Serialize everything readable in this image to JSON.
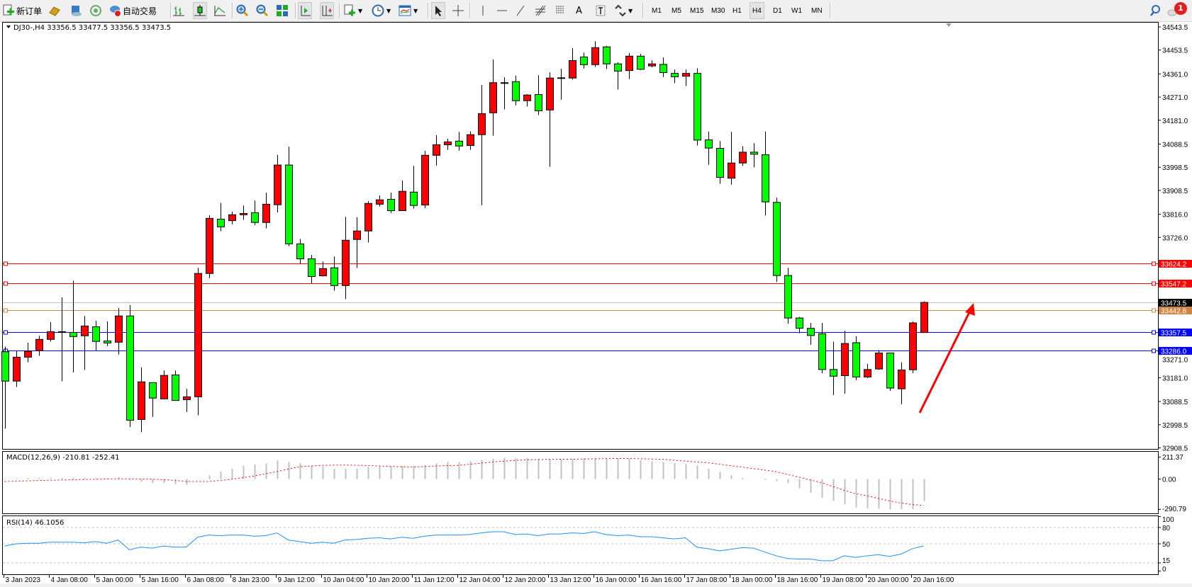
{
  "toolbar": {
    "new_order": "新订单",
    "auto_trading": "自动交易",
    "timeframes": [
      "M1",
      "M5",
      "M15",
      "M30",
      "H1",
      "H4",
      "D1",
      "W1",
      "MN"
    ],
    "active_timeframe": "H4",
    "notification_count": "1",
    "icons": [
      "new-order-icon",
      "gold-icon",
      "history-icon",
      "signal-icon",
      "auto-trading-icon",
      "bar-chart-icon",
      "candlestick-icon",
      "line-chart-icon",
      "zoom-in-icon",
      "zoom-out-icon",
      "tile-windows-icon",
      "auto-scroll-icon",
      "chart-shift-icon",
      "new-chart-icon",
      "periods-clock-icon",
      "templates-icon",
      "cursor-icon",
      "crosshair-icon",
      "vertical-line-icon",
      "horizontal-line-icon",
      "trendline-icon",
      "fibonacci-icon",
      "fibonacci-fan-icon",
      "text-icon",
      "text-label-icon",
      "arrows-icon",
      "search-icon",
      "notification-icon"
    ]
  },
  "chart": {
    "header": "DJ30-,H4  33356.5 33477.5 33356.5 33473.5",
    "colors": {
      "up": "#ff0000",
      "down": "#00ff00",
      "outline": "#000000",
      "background": "#ffffff"
    },
    "price_axis": [
      "34543.5",
      "34453.5",
      "34361.0",
      "34271.0",
      "34181.0",
      "34088.5",
      "33998.5",
      "33908.5",
      "33816.0",
      "33726.0",
      "33271.0",
      "33181.0",
      "33088.5",
      "32998.5",
      "32908.5"
    ],
    "levels": [
      {
        "price": 33624.2,
        "label": "33624.2",
        "color": "#ff0000"
      },
      {
        "price": 33547.2,
        "label": "33547.2",
        "color": "#ff0000"
      },
      {
        "price": 33473.5,
        "label": "33473.5",
        "color": "#000000",
        "line": "#c0c0c0"
      },
      {
        "price": 33442.8,
        "label": "33442.8",
        "color": "#cd853f"
      },
      {
        "price": 33357.5,
        "label": "33357.5",
        "color": "#0000ff"
      },
      {
        "price": 33286.0,
        "label": "33286.0",
        "color": "#0000ff"
      }
    ],
    "arrow_color": "#ff0000",
    "candles": [
      [
        33282,
        33302,
        32984,
        33168
      ],
      [
        33168,
        33284,
        33145,
        33261
      ],
      [
        33261,
        33317,
        33241,
        33284
      ],
      [
        33286,
        33344,
        33266,
        33330
      ],
      [
        33330,
        33397,
        33321,
        33360
      ],
      [
        33359,
        33493,
        33167,
        33360
      ],
      [
        33357,
        33558,
        33202,
        33341
      ],
      [
        33344,
        33421,
        33211,
        33382
      ],
      [
        33379,
        33402,
        33286,
        33322
      ],
      [
        33324,
        33400,
        33304,
        33316
      ],
      [
        33319,
        33452,
        33271,
        33421
      ],
      [
        33421,
        33463,
        32989,
        33016
      ],
      [
        33019,
        33221,
        32970,
        33165
      ],
      [
        33162,
        33162,
        33029,
        33102
      ],
      [
        33099,
        33209,
        33099,
        33190
      ],
      [
        33192,
        33209,
        33093,
        33093
      ],
      [
        33096,
        33138,
        33048,
        33107
      ],
      [
        33107,
        33608,
        33035,
        33586
      ],
      [
        33586,
        33812,
        33568,
        33800
      ],
      [
        33797,
        33860,
        33750,
        33767
      ],
      [
        33791,
        33826,
        33777,
        33814
      ],
      [
        33814,
        33850,
        33794,
        33819
      ],
      [
        33822,
        33869,
        33774,
        33784
      ],
      [
        33784,
        33900,
        33761,
        33855
      ],
      [
        33853,
        34046,
        33823,
        34007
      ],
      [
        34007,
        34078,
        33692,
        33701
      ],
      [
        33701,
        33720,
        33625,
        33643
      ],
      [
        33643,
        33658,
        33548,
        33574
      ],
      [
        33577,
        33632,
        33574,
        33605
      ],
      [
        33608,
        33652,
        33519,
        33539
      ],
      [
        33539,
        33806,
        33486,
        33715
      ],
      [
        33718,
        33804,
        33607,
        33751
      ],
      [
        33751,
        33867,
        33706,
        33858
      ],
      [
        33855,
        33889,
        33846,
        33872
      ],
      [
        33874,
        33900,
        33821,
        33830
      ],
      [
        33830,
        33947,
        33830,
        33905
      ],
      [
        33902,
        34004,
        33838,
        33850
      ],
      [
        33852,
        34062,
        33840,
        34045
      ],
      [
        34045,
        34123,
        34005,
        34086
      ],
      [
        34086,
        34109,
        34066,
        34097
      ],
      [
        34100,
        34136,
        34063,
        34081
      ],
      [
        34083,
        34138,
        34066,
        34125
      ],
      [
        34125,
        34318,
        33851,
        34207
      ],
      [
        34210,
        34417,
        34121,
        34327
      ],
      [
        34326,
        34348,
        34223,
        34327
      ],
      [
        34331,
        34354,
        34239,
        34257
      ],
      [
        34257,
        34282,
        34234,
        34279
      ],
      [
        34281,
        34356,
        34201,
        34218
      ],
      [
        34221,
        34367,
        34000,
        34345
      ],
      [
        34345,
        34381,
        34261,
        34346
      ],
      [
        34345,
        34461,
        34339,
        34413
      ],
      [
        34427,
        34444,
        34382,
        34397
      ],
      [
        34397,
        34488,
        34388,
        34463
      ],
      [
        34466,
        34470,
        34380,
        34400
      ],
      [
        34400,
        34406,
        34300,
        34372
      ],
      [
        34374,
        34442,
        34341,
        34430
      ],
      [
        34430,
        34439,
        34376,
        34379
      ],
      [
        34392,
        34414,
        34387,
        34400
      ],
      [
        34398,
        34425,
        34349,
        34366
      ],
      [
        34363,
        34378,
        34325,
        34350
      ],
      [
        34352,
        34378,
        34314,
        34363
      ],
      [
        34363,
        34383,
        34083,
        34104
      ],
      [
        34105,
        34137,
        34008,
        34073
      ],
      [
        34072,
        34100,
        33934,
        33959
      ],
      [
        33956,
        34136,
        33931,
        34015
      ],
      [
        34015,
        34080,
        34004,
        34057
      ],
      [
        34057,
        34092,
        33998,
        34049
      ],
      [
        34047,
        34137,
        33811,
        33864
      ],
      [
        33862,
        33880,
        33553,
        33578
      ],
      [
        33578,
        33608,
        33391,
        33413
      ],
      [
        33413,
        33417,
        33354,
        33373
      ],
      [
        33373,
        33394,
        33309,
        33345
      ],
      [
        33352,
        33394,
        33198,
        33213
      ],
      [
        33213,
        33321,
        33114,
        33187
      ],
      [
        33189,
        33364,
        33119,
        33314
      ],
      [
        33317,
        33342,
        33172,
        33184
      ],
      [
        33184,
        33235,
        33180,
        33213
      ],
      [
        33215,
        33288,
        33212,
        33277
      ],
      [
        33277,
        33277,
        33130,
        33141
      ],
      [
        33138,
        33241,
        33078,
        33211
      ],
      [
        33212,
        33400,
        33199,
        33394
      ],
      [
        33356.5,
        33477.5,
        33356.5,
        33473.5
      ]
    ],
    "time_labels": [
      {
        "i": 0,
        "label": "3 Jan 2023"
      },
      {
        "i": 4,
        "label": "4 Jan 08:00"
      },
      {
        "i": 8,
        "label": "5 Jan 00:00"
      },
      {
        "i": 12,
        "label": "5 Jan 16:00"
      },
      {
        "i": 16,
        "label": "6 Jan 08:00"
      },
      {
        "i": 20,
        "label": "8 Jan 23:00"
      },
      {
        "i": 24,
        "label": "9 Jan 12:00"
      },
      {
        "i": 28,
        "label": "10 Jan 04:00"
      },
      {
        "i": 32,
        "label": "10 Jan 20:00"
      },
      {
        "i": 36,
        "label": "11 Jan 12:00"
      },
      {
        "i": 40,
        "label": "12 Jan 04:00"
      },
      {
        "i": 44,
        "label": "12 Jan 20:00"
      },
      {
        "i": 48,
        "label": "13 Jan 12:00"
      },
      {
        "i": 52,
        "label": "16 Jan 00:00"
      },
      {
        "i": 56,
        "label": "16 Jan 16:00"
      },
      {
        "i": 60,
        "label": "17 Jan 08:00"
      },
      {
        "i": 64,
        "label": "18 Jan 00:00"
      },
      {
        "i": 68,
        "label": "18 Jan 16:00"
      },
      {
        "i": 72,
        "label": "19 Jan 08:00"
      },
      {
        "i": 76,
        "label": "20 Jan 00:00"
      },
      {
        "i": 80,
        "label": "20 Jan 16:00"
      }
    ]
  },
  "macd": {
    "title": "MACD(12,26,9) -210.81 -252.41",
    "axis": [
      "211.37",
      "0.00",
      "-290.79"
    ],
    "histogram_color": "#c0c0c0",
    "signal_color": "#ff0000",
    "histogram": [
      6,
      8,
      10,
      10,
      12,
      12,
      12,
      12,
      12,
      9,
      17,
      -9,
      -26,
      -38,
      -38,
      -49,
      -55,
      2,
      36,
      72,
      100,
      128,
      140,
      151,
      179,
      164,
      153,
      130,
      119,
      100,
      98,
      100,
      115,
      121,
      121,
      126,
      128,
      136,
      151,
      164,
      164,
      170,
      185,
      196,
      206,
      202,
      202,
      194,
      194,
      191,
      196,
      200,
      200,
      200,
      200,
      198,
      183,
      170,
      164,
      153,
      145,
      132,
      100,
      70,
      36,
      11,
      -2,
      -9,
      -19,
      -38,
      -89,
      -132,
      -179,
      -209,
      -243,
      -274,
      -281,
      -285,
      -290.79,
      -289,
      -290,
      -210.81
    ],
    "signal": [
      -23,
      -20,
      -17,
      -14,
      -11,
      -9,
      -6,
      -4,
      -2,
      2,
      2,
      2,
      1,
      0,
      -6,
      -12,
      -23,
      -23,
      -23,
      -13,
      -2,
      14,
      30,
      51,
      72,
      96,
      119,
      126,
      132,
      134,
      136,
      133,
      130,
      126,
      122,
      118,
      115,
      120,
      126,
      129,
      132,
      142,
      153,
      164,
      172,
      180,
      185,
      188,
      190,
      191,
      191,
      193,
      195,
      197,
      198,
      198,
      196,
      193,
      190,
      181,
      173,
      165,
      157,
      143,
      129,
      115,
      101,
      86,
      72,
      45,
      19,
      -8,
      -34,
      -71,
      -108,
      -140,
      -160,
      -185,
      -210,
      -230,
      -245,
      -252.41
    ]
  },
  "rsi": {
    "title": "RSI(14) 46.1056",
    "axis": [
      "100",
      "80",
      "50",
      "15",
      "0"
    ],
    "levels": [
      80,
      50,
      15
    ],
    "color": "#1e90ff",
    "values": [
      46,
      50,
      51,
      51,
      53,
      53,
      53,
      52,
      54,
      51,
      57,
      39,
      44,
      42,
      46,
      44,
      44,
      62,
      66,
      65,
      66,
      66,
      64,
      65,
      70,
      57,
      54,
      51,
      53,
      51,
      57,
      58,
      60,
      61,
      59,
      62,
      60,
      64,
      66,
      66,
      66,
      67,
      70,
      72,
      72,
      67,
      68,
      65,
      68,
      68,
      70,
      69,
      72,
      67,
      65,
      66,
      63,
      63,
      61,
      59,
      61,
      44,
      41,
      37,
      40,
      43,
      42,
      35,
      28,
      23,
      22,
      22,
      19,
      19,
      28,
      25,
      28,
      30,
      27,
      31,
      41,
      46.1056
    ]
  }
}
